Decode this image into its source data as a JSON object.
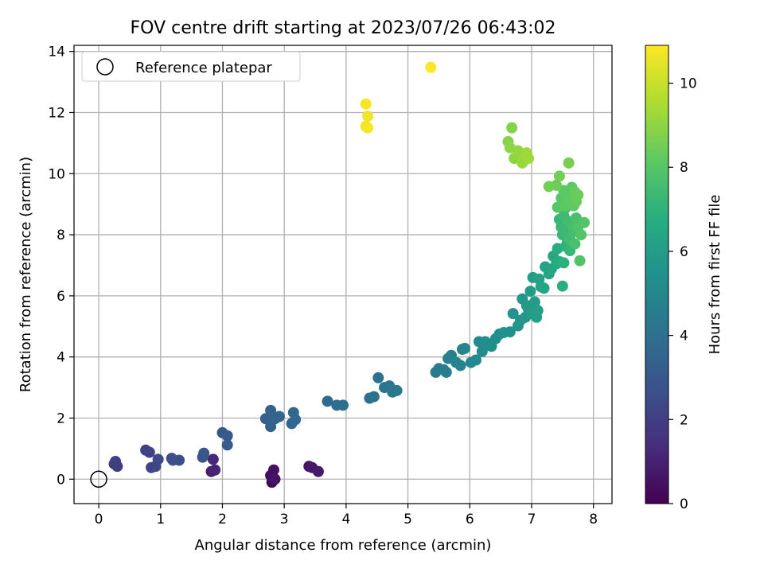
{
  "chart_data": {
    "type": "scatter",
    "title": "FOV centre drift starting at 2023/07/26 06:43:02",
    "xlabel": "Angular distance from reference (arcmin)",
    "ylabel": "Rotation from reference (arcmin)",
    "xlim": [
      -0.4,
      8.3
    ],
    "ylim": [
      -0.8,
      14.2
    ],
    "xticks": [
      "0",
      "1",
      "2",
      "3",
      "4",
      "5",
      "6",
      "7",
      "8"
    ],
    "yticks": [
      "0",
      "2",
      "4",
      "6",
      "8",
      "10",
      "12",
      "14"
    ],
    "grid": true,
    "legend": {
      "placement": "top-left",
      "entries": [
        "Reference platepar"
      ]
    },
    "reference_point": {
      "x": 0,
      "y": 0
    },
    "colorbar": {
      "label": "Hours from first FF file",
      "range": [
        0,
        10.9
      ],
      "ticks": [
        "0",
        "2",
        "4",
        "6",
        "8",
        "10"
      ],
      "colormap": "viridis"
    },
    "series": [
      {
        "points": [
          [
            2.8,
            -0.1,
            0.2
          ],
          [
            2.78,
            0.12,
            0.3
          ],
          [
            2.82,
            0.05,
            0.4
          ],
          [
            2.83,
            0.3,
            0.5
          ],
          [
            2.85,
            0.0,
            0.6
          ],
          [
            3.4,
            0.42,
            0.6
          ],
          [
            3.45,
            0.38,
            0.7
          ],
          [
            3.55,
            0.25,
            0.8
          ],
          [
            1.82,
            0.25,
            1.0
          ],
          [
            1.88,
            0.3,
            1.1
          ],
          [
            1.85,
            0.65,
            1.2
          ],
          [
            0.25,
            0.5,
            1.8
          ],
          [
            0.3,
            0.42,
            1.9
          ],
          [
            0.27,
            0.58,
            2.0
          ],
          [
            0.76,
            0.95,
            2.1
          ],
          [
            0.82,
            0.88,
            2.2
          ],
          [
            0.85,
            0.38,
            2.3
          ],
          [
            0.92,
            0.42,
            2.3
          ],
          [
            0.96,
            0.65,
            2.4
          ],
          [
            1.18,
            0.68,
            2.5
          ],
          [
            1.2,
            0.62,
            2.6
          ],
          [
            1.3,
            0.62,
            2.6
          ],
          [
            1.68,
            0.72,
            2.8
          ],
          [
            1.7,
            0.85,
            2.9
          ],
          [
            2.0,
            1.52,
            3.0
          ],
          [
            2.08,
            1.42,
            3.1
          ],
          [
            2.08,
            1.12,
            3.1
          ],
          [
            2.7,
            1.98,
            3.3
          ],
          [
            2.78,
            2.25,
            3.4
          ],
          [
            2.78,
            1.72,
            3.4
          ],
          [
            2.85,
            1.98,
            3.5
          ],
          [
            2.92,
            2.05,
            3.5
          ],
          [
            3.12,
            1.82,
            3.6
          ],
          [
            3.15,
            2.18,
            3.6
          ],
          [
            3.18,
            1.95,
            3.7
          ],
          [
            3.7,
            2.55,
            3.8
          ],
          [
            3.85,
            2.42,
            3.9
          ],
          [
            3.95,
            2.42,
            3.9
          ],
          [
            4.38,
            2.65,
            4.0
          ],
          [
            4.45,
            2.7,
            4.1
          ],
          [
            4.52,
            3.32,
            4.1
          ],
          [
            4.62,
            3.0,
            4.2
          ],
          [
            4.7,
            3.05,
            4.2
          ],
          [
            4.75,
            2.85,
            4.3
          ],
          [
            4.82,
            2.9,
            4.3
          ],
          [
            5.45,
            3.5,
            4.5
          ],
          [
            5.5,
            3.62,
            4.5
          ],
          [
            5.58,
            3.58,
            4.6
          ],
          [
            5.62,
            3.5,
            4.6
          ],
          [
            5.65,
            3.95,
            4.7
          ],
          [
            5.7,
            4.05,
            4.7
          ],
          [
            5.78,
            3.82,
            4.8
          ],
          [
            5.85,
            3.72,
            4.9
          ],
          [
            5.88,
            4.25,
            4.9
          ],
          [
            5.92,
            4.28,
            5.0
          ],
          [
            6.02,
            3.82,
            5.0
          ],
          [
            6.1,
            3.9,
            5.1
          ],
          [
            6.15,
            4.5,
            5.1
          ],
          [
            6.2,
            4.18,
            5.2
          ],
          [
            6.25,
            4.5,
            5.2
          ],
          [
            6.3,
            4.42,
            5.3
          ],
          [
            6.35,
            4.35,
            5.3
          ],
          [
            6.42,
            4.6,
            5.4
          ],
          [
            6.48,
            4.75,
            5.4
          ],
          [
            6.55,
            4.8,
            5.5
          ],
          [
            6.65,
            4.82,
            5.5
          ],
          [
            6.7,
            5.42,
            5.6
          ],
          [
            6.78,
            5.02,
            5.6
          ],
          [
            6.82,
            5.2,
            5.7
          ],
          [
            6.85,
            5.9,
            5.7
          ],
          [
            6.9,
            5.3,
            5.8
          ],
          [
            6.92,
            5.68,
            5.8
          ],
          [
            6.95,
            5.55,
            5.9
          ],
          [
            6.98,
            6.15,
            5.9
          ],
          [
            7.0,
            5.42,
            6.0
          ],
          [
            7.02,
            6.6,
            6.0
          ],
          [
            7.05,
            5.8,
            6.0
          ],
          [
            7.08,
            5.3,
            6.1
          ],
          [
            7.1,
            5.52,
            6.1
          ],
          [
            7.12,
            6.55,
            6.2
          ],
          [
            7.15,
            6.3,
            6.2
          ],
          [
            7.2,
            6.25,
            6.3
          ],
          [
            7.22,
            6.95,
            6.3
          ],
          [
            7.28,
            6.72,
            6.4
          ],
          [
            7.32,
            6.88,
            6.5
          ],
          [
            7.35,
            7.3,
            6.5
          ],
          [
            7.4,
            7.05,
            6.6
          ],
          [
            7.42,
            7.55,
            6.7
          ],
          [
            7.45,
            7.12,
            6.7
          ],
          [
            7.5,
            6.32,
            6.8
          ],
          [
            7.52,
            7.08,
            6.9
          ],
          [
            7.55,
            7.62,
            7.0
          ],
          [
            7.58,
            7.82,
            7.0
          ],
          [
            7.6,
            8.15,
            7.1
          ],
          [
            7.62,
            7.48,
            7.2
          ],
          [
            7.45,
            8.5,
            7.2
          ],
          [
            7.48,
            8.25,
            7.3
          ],
          [
            7.5,
            8.0,
            7.3
          ],
          [
            7.52,
            8.62,
            7.4
          ],
          [
            7.55,
            8.88,
            7.4
          ],
          [
            7.58,
            8.45,
            7.5
          ],
          [
            7.62,
            7.85,
            7.5
          ],
          [
            7.65,
            8.3,
            7.6
          ],
          [
            7.68,
            8.1,
            7.6
          ],
          [
            7.7,
            7.7,
            7.7
          ],
          [
            7.72,
            8.55,
            7.7
          ],
          [
            7.75,
            8.25,
            7.8
          ],
          [
            7.78,
            7.15,
            7.8
          ],
          [
            7.8,
            8.0,
            7.9
          ],
          [
            7.85,
            8.4,
            7.9
          ],
          [
            7.42,
            8.9,
            8.0
          ],
          [
            7.48,
            9.2,
            8.0
          ],
          [
            7.52,
            9.45,
            8.1
          ],
          [
            7.55,
            8.95,
            8.1
          ],
          [
            7.58,
            9.3,
            8.1
          ],
          [
            7.62,
            9.12,
            8.2
          ],
          [
            7.65,
            9.55,
            8.2
          ],
          [
            7.68,
            8.95,
            8.2
          ],
          [
            7.7,
            9.4,
            8.3
          ],
          [
            7.72,
            9.08,
            8.3
          ],
          [
            7.75,
            9.3,
            8.4
          ],
          [
            7.4,
            9.62,
            8.4
          ],
          [
            7.45,
            9.92,
            8.5
          ],
          [
            7.28,
            9.58,
            8.5
          ],
          [
            7.6,
            10.35,
            8.6
          ],
          [
            6.68,
            11.5,
            8.8
          ],
          [
            6.62,
            11.05,
            8.9
          ],
          [
            6.65,
            10.85,
            9.0
          ],
          [
            6.72,
            10.5,
            9.0
          ],
          [
            6.78,
            10.75,
            9.1
          ],
          [
            6.85,
            10.35,
            9.2
          ],
          [
            6.88,
            10.5,
            9.2
          ],
          [
            6.92,
            10.68,
            9.3
          ],
          [
            6.95,
            10.5,
            9.3
          ],
          [
            4.32,
            11.55,
            10.7
          ],
          [
            4.35,
            11.88,
            10.7
          ],
          [
            4.32,
            12.28,
            10.8
          ],
          [
            4.35,
            11.5,
            10.8
          ],
          [
            5.37,
            13.48,
            10.9
          ]
        ]
      }
    ]
  }
}
